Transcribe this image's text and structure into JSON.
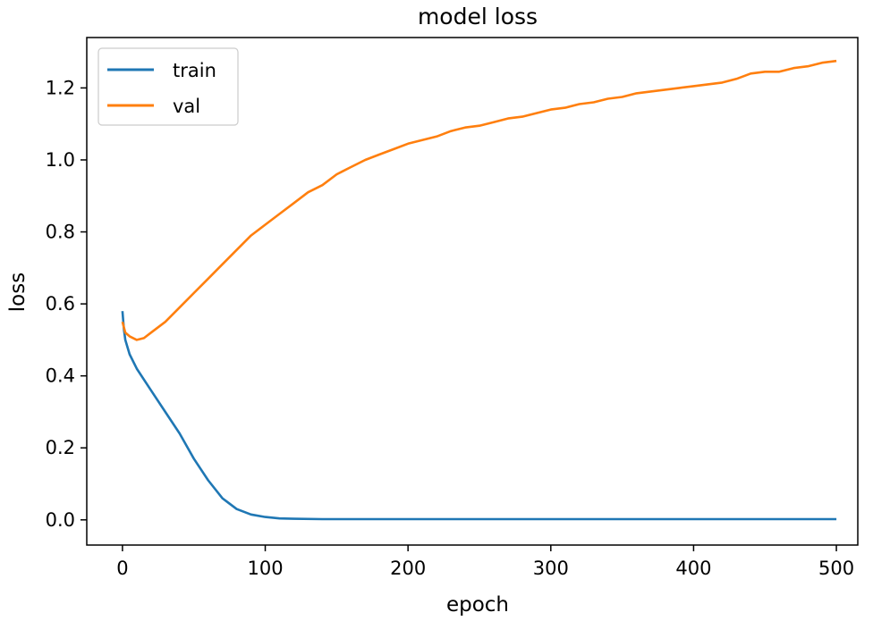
{
  "chart_data": {
    "type": "line",
    "title": "model loss",
    "xlabel": "epoch",
    "ylabel": "loss",
    "xlim": [
      -25,
      515
    ],
    "ylim": [
      -0.07,
      1.34
    ],
    "xticks": [
      0,
      100,
      200,
      300,
      400,
      500
    ],
    "xtick_labels": [
      "0",
      "100",
      "200",
      "300",
      "400",
      "500"
    ],
    "yticks": [
      0.0,
      0.2,
      0.4,
      0.6,
      0.8,
      1.0,
      1.2
    ],
    "ytick_labels": [
      "0.0",
      "0.2",
      "0.4",
      "0.6",
      "0.8",
      "1.0",
      "1.2"
    ],
    "grid": false,
    "legend_position": "upper-left",
    "series": [
      {
        "name": "train",
        "color": "#1f77b4",
        "x": [
          0,
          1,
          2,
          5,
          10,
          20,
          30,
          40,
          50,
          60,
          70,
          80,
          90,
          100,
          110,
          120,
          140,
          160,
          200,
          300,
          400,
          500
        ],
        "y": [
          0.58,
          0.53,
          0.5,
          0.46,
          0.42,
          0.36,
          0.3,
          0.24,
          0.17,
          0.11,
          0.06,
          0.03,
          0.015,
          0.008,
          0.004,
          0.003,
          0.002,
          0.002,
          0.002,
          0.002,
          0.002,
          0.002
        ]
      },
      {
        "name": "val",
        "color": "#ff7f0e",
        "x": [
          0,
          2,
          5,
          10,
          15,
          20,
          30,
          40,
          50,
          60,
          70,
          80,
          90,
          100,
          110,
          120,
          130,
          140,
          150,
          160,
          170,
          180,
          190,
          200,
          210,
          220,
          230,
          240,
          250,
          260,
          270,
          280,
          290,
          300,
          310,
          320,
          330,
          340,
          350,
          360,
          370,
          380,
          390,
          400,
          410,
          420,
          430,
          440,
          450,
          460,
          470,
          480,
          490,
          500
        ],
        "y": [
          0.55,
          0.52,
          0.51,
          0.5,
          0.505,
          0.52,
          0.55,
          0.59,
          0.63,
          0.67,
          0.71,
          0.75,
          0.79,
          0.82,
          0.85,
          0.88,
          0.91,
          0.93,
          0.96,
          0.98,
          1.0,
          1.015,
          1.03,
          1.045,
          1.055,
          1.065,
          1.08,
          1.09,
          1.095,
          1.105,
          1.115,
          1.12,
          1.13,
          1.14,
          1.145,
          1.155,
          1.16,
          1.17,
          1.175,
          1.185,
          1.19,
          1.195,
          1.2,
          1.205,
          1.21,
          1.215,
          1.225,
          1.24,
          1.245,
          1.245,
          1.255,
          1.26,
          1.27,
          1.275
        ]
      }
    ]
  }
}
